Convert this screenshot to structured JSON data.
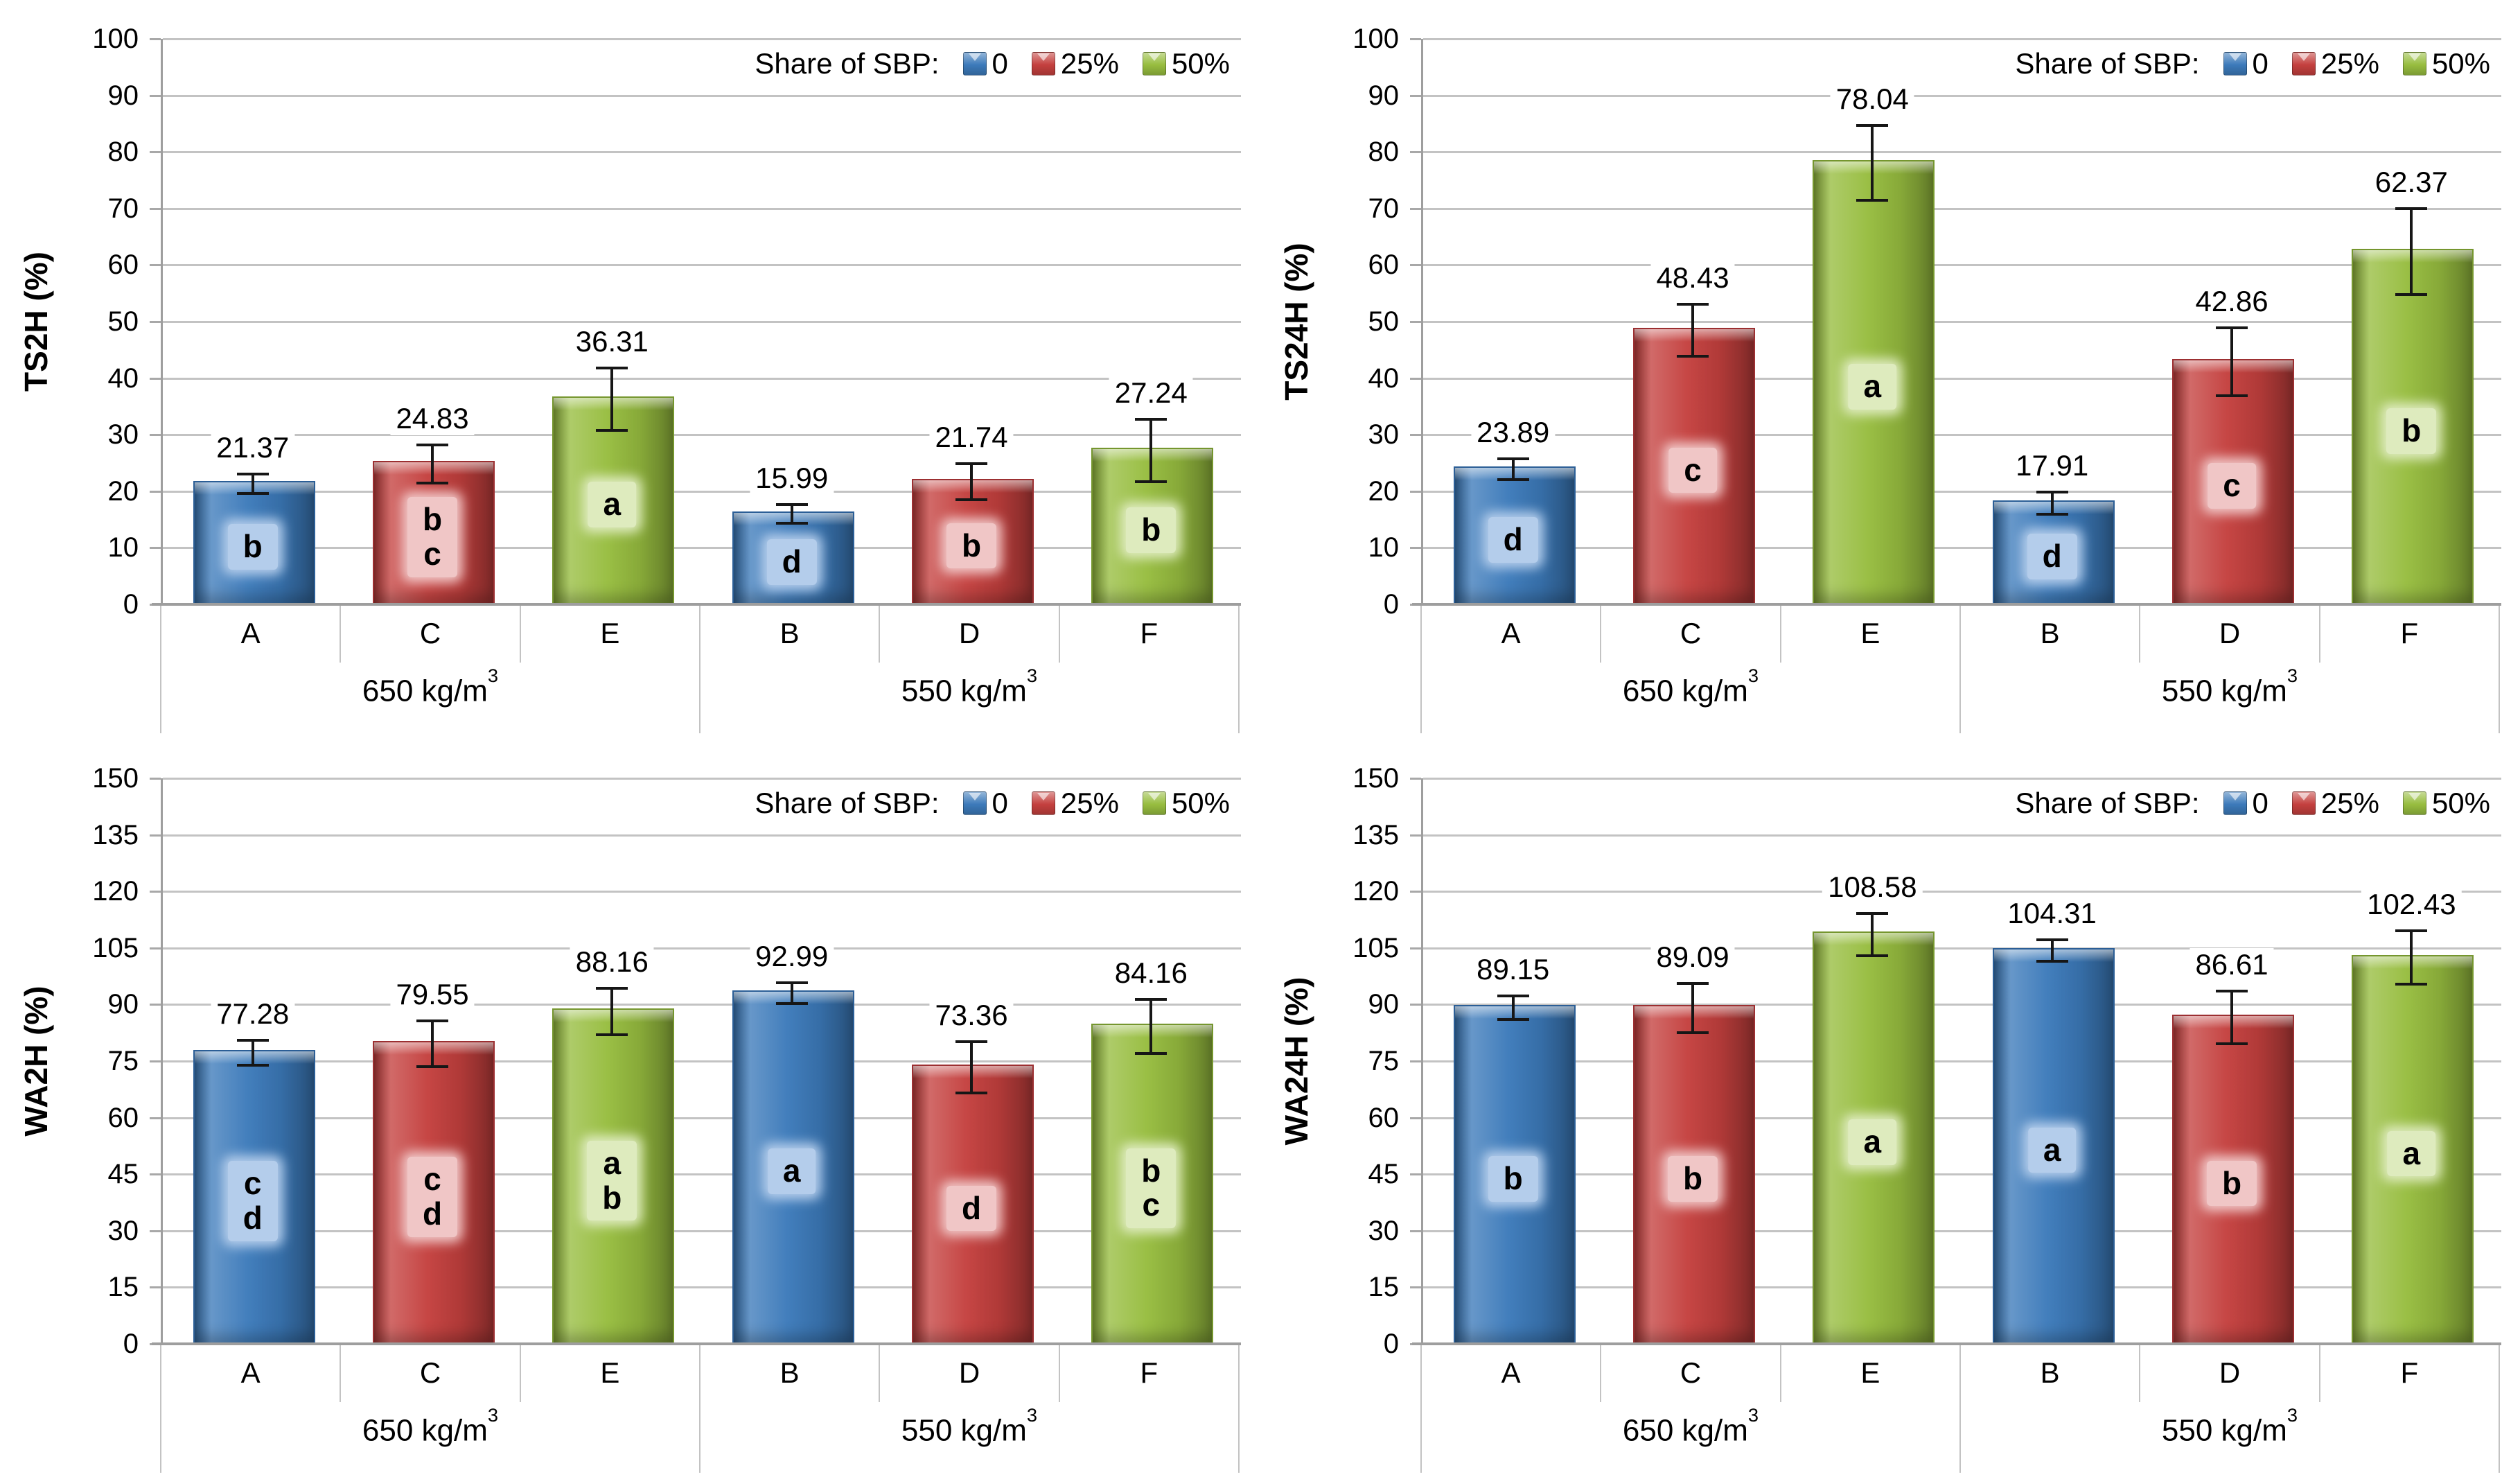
{
  "legend": {
    "title": "Share of SBP:",
    "items": [
      {
        "label": "0",
        "color": "#3C7ABA"
      },
      {
        "label": "25%",
        "color": "#C4403E"
      },
      {
        "label": "50%",
        "color": "#97BD3F"
      }
    ]
  },
  "palette": [
    {
      "name": "blue",
      "base": "#3C7ABA",
      "dark": "#2B5E96",
      "box": "#B4CDEB"
    },
    {
      "name": "red",
      "base": "#C4403E",
      "dark": "#9C2F31",
      "box": "#F0C6C6"
    },
    {
      "name": "green",
      "base": "#97BD3F",
      "dark": "#75962E",
      "box": "#DEEBBE"
    }
  ],
  "axis_colors": {
    "gridline": "#C3C3C3",
    "axis_line": "#9E9E9E"
  },
  "chart_data": [
    {
      "type": "bar",
      "id": "ts2h",
      "ylabel": "TS2H (%)",
      "ylim": [
        0,
        100
      ],
      "y_ticks": [
        "0",
        "10",
        "20",
        "30",
        "40",
        "50",
        "60",
        "70",
        "80",
        "90",
        "100"
      ],
      "grid": true,
      "legend_position": "top-right",
      "groups": [
        {
          "label_base": "650 kg/m",
          "label_sup": "3"
        },
        {
          "label_base": "550 kg/m",
          "label_sup": "3"
        }
      ],
      "bars": [
        {
          "category": "A",
          "series": "0",
          "value": "21.37",
          "error": 1.7,
          "letters": [
            "b"
          ]
        },
        {
          "category": "C",
          "series": "25%",
          "value": "24.83",
          "error": 3.4,
          "letters": [
            "b",
            "c"
          ]
        },
        {
          "category": "E",
          "series": "50%",
          "value": "36.31",
          "error": 5.5,
          "letters": [
            "a"
          ]
        },
        {
          "category": "B",
          "series": "0",
          "value": "15.99",
          "error": 1.7,
          "letters": [
            "d"
          ]
        },
        {
          "category": "D",
          "series": "25%",
          "value": "21.74",
          "error": 3.2,
          "letters": [
            "b"
          ]
        },
        {
          "category": "F",
          "series": "50%",
          "value": "27.24",
          "error": 5.5,
          "letters": [
            "b"
          ]
        }
      ]
    },
    {
      "type": "bar",
      "id": "ts24h",
      "ylabel": "TS24H (%)",
      "ylim": [
        0,
        100
      ],
      "y_ticks": [
        "0",
        "10",
        "20",
        "30",
        "40",
        "50",
        "60",
        "70",
        "80",
        "90",
        "100"
      ],
      "grid": true,
      "legend_position": "top-right",
      "groups": [
        {
          "label_base": "650 kg/m",
          "label_sup": "3"
        },
        {
          "label_base": "550 kg/m",
          "label_sup": "3"
        }
      ],
      "bars": [
        {
          "category": "A",
          "series": "0",
          "value": "23.89",
          "error": 1.8,
          "letters": [
            "d"
          ]
        },
        {
          "category": "C",
          "series": "25%",
          "value": "48.43",
          "error": 4.6,
          "letters": [
            "c"
          ]
        },
        {
          "category": "E",
          "series": "50%",
          "value": "78.04",
          "error": 6.6,
          "letters": [
            "a"
          ]
        },
        {
          "category": "B",
          "series": "0",
          "value": "17.91",
          "error": 2.0,
          "letters": [
            "d"
          ]
        },
        {
          "category": "D",
          "series": "25%",
          "value": "42.86",
          "error": 6.0,
          "letters": [
            "c"
          ]
        },
        {
          "category": "F",
          "series": "50%",
          "value": "62.37",
          "error": 7.6,
          "letters": [
            "b"
          ]
        }
      ]
    },
    {
      "type": "bar",
      "id": "wa2h",
      "ylabel": "WA2H (%)",
      "ylim": [
        0,
        150
      ],
      "y_ticks": [
        "0",
        "15",
        "30",
        "45",
        "60",
        "75",
        "90",
        "105",
        "120",
        "135",
        "150"
      ],
      "grid": true,
      "legend_position": "top-right",
      "groups": [
        {
          "label_base": "650 kg/m",
          "label_sup": "3"
        },
        {
          "label_base": "550 kg/m",
          "label_sup": "3"
        }
      ],
      "bars": [
        {
          "category": "A",
          "series": "0",
          "value": "77.28",
          "error": 3.3,
          "letters": [
            "c",
            "d"
          ]
        },
        {
          "category": "C",
          "series": "25%",
          "value": "79.55",
          "error": 6.1,
          "letters": [
            "c",
            "d"
          ]
        },
        {
          "category": "E",
          "series": "50%",
          "value": "88.16",
          "error": 6.2,
          "letters": [
            "a",
            "b"
          ]
        },
        {
          "category": "B",
          "series": "0",
          "value": "92.99",
          "error": 2.7,
          "letters": [
            "a"
          ]
        },
        {
          "category": "D",
          "series": "25%",
          "value": "73.36",
          "error": 6.8,
          "letters": [
            "d"
          ]
        },
        {
          "category": "F",
          "series": "50%",
          "value": "84.16",
          "error": 7.2,
          "letters": [
            "b",
            "c"
          ]
        }
      ]
    },
    {
      "type": "bar",
      "id": "wa24h",
      "ylabel": "WA24H (%)",
      "ylim": [
        0,
        150
      ],
      "y_ticks": [
        "0",
        "15",
        "30",
        "45",
        "60",
        "75",
        "90",
        "105",
        "120",
        "135",
        "150"
      ],
      "grid": true,
      "legend_position": "top-right",
      "groups": [
        {
          "label_base": "650 kg/m",
          "label_sup": "3"
        },
        {
          "label_base": "550 kg/m",
          "label_sup": "3"
        }
      ],
      "bars": [
        {
          "category": "A",
          "series": "0",
          "value": "89.15",
          "error": 3.2,
          "letters": [
            "b"
          ]
        },
        {
          "category": "C",
          "series": "25%",
          "value": "89.09",
          "error": 6.5,
          "letters": [
            "b"
          ]
        },
        {
          "category": "E",
          "series": "50%",
          "value": "108.58",
          "error": 5.6,
          "letters": [
            "a"
          ]
        },
        {
          "category": "B",
          "series": "0",
          "value": "104.31",
          "error": 2.9,
          "letters": [
            "a"
          ]
        },
        {
          "category": "D",
          "series": "25%",
          "value": "86.61",
          "error": 7.0,
          "letters": [
            "b"
          ]
        },
        {
          "category": "F",
          "series": "50%",
          "value": "102.43",
          "error": 7.1,
          "letters": [
            "a"
          ]
        }
      ]
    }
  ]
}
